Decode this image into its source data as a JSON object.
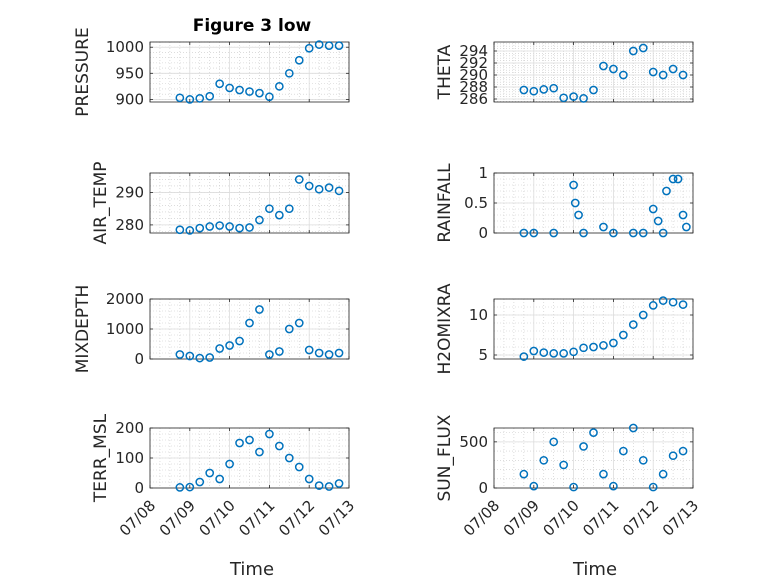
{
  "title": "Figure 3 low",
  "xlabel": "Time",
  "x_tick_labels": [
    "07/08",
    "07/09",
    "07/10",
    "07/11",
    "07/12",
    "07/13"
  ],
  "marker_color": "#0072BD",
  "chart_data": [
    {
      "type": "scatter",
      "name": "PRESSURE",
      "ylabel": "PRESSURE",
      "ylim": [
        895,
        1010
      ],
      "yticks": [
        900,
        950,
        1000
      ],
      "grid": true,
      "title": "Figure 3 low",
      "x": [
        "07/08 18:00",
        "07/09 00:00",
        "07/09 06:00",
        "07/09 12:00",
        "07/09 18:00",
        "07/10 00:00",
        "07/10 06:00",
        "07/10 12:00",
        "07/10 18:00",
        "07/11 00:00",
        "07/11 06:00",
        "07/11 12:00",
        "07/11 18:00",
        "07/12 00:00",
        "07/12 06:00",
        "07/12 12:00",
        "07/12 18:00"
      ],
      "y": [
        903,
        900,
        902,
        906,
        930,
        922,
        918,
        915,
        912,
        905,
        925,
        950,
        975,
        998,
        1005,
        1003,
        1003
      ]
    },
    {
      "type": "scatter",
      "name": "THETA",
      "ylabel": "THETA",
      "ylim": [
        285.5,
        295.5
      ],
      "yticks": [
        286,
        288,
        290,
        292,
        294
      ],
      "grid": true,
      "x": [
        "07/08 18:00",
        "07/09 00:00",
        "07/09 06:00",
        "07/09 12:00",
        "07/09 18:00",
        "07/10 00:00",
        "07/10 06:00",
        "07/10 12:00",
        "07/10 18:00",
        "07/11 00:00",
        "07/11 06:00",
        "07/11 12:00",
        "07/11 18:00",
        "07/12 00:00",
        "07/12 06:00",
        "07/12 12:00",
        "07/12 18:00"
      ],
      "y": [
        287.5,
        287.3,
        287.6,
        287.8,
        286.2,
        286.4,
        286.1,
        287.5,
        291.5,
        291.0,
        290.0,
        294.0,
        294.5,
        290.5,
        290.0,
        291.0,
        290.0
      ]
    },
    {
      "type": "scatter",
      "name": "AIR_TEMP",
      "ylabel": "AIR_TEMP",
      "ylim": [
        277.5,
        296
      ],
      "yticks": [
        280,
        290
      ],
      "grid": true,
      "x": [
        "07/08 18:00",
        "07/09 00:00",
        "07/09 06:00",
        "07/09 12:00",
        "07/09 18:00",
        "07/10 00:00",
        "07/10 06:00",
        "07/10 12:00",
        "07/10 18:00",
        "07/11 00:00",
        "07/11 06:00",
        "07/11 12:00",
        "07/11 18:00",
        "07/12 00:00",
        "07/12 06:00",
        "07/12 12:00",
        "07/12 18:00"
      ],
      "y": [
        278.5,
        278.3,
        279.0,
        279.5,
        279.8,
        279.5,
        279.0,
        279.2,
        281.5,
        285.0,
        283.0,
        285.0,
        294.0,
        292.0,
        291.0,
        291.5,
        290.5
      ]
    },
    {
      "type": "scatter",
      "name": "RAINFALL",
      "ylabel": "RAINFALL",
      "ylim": [
        0,
        1
      ],
      "yticks": [
        0,
        0.5,
        1
      ],
      "grid": true,
      "x": [
        "07/08 18:00",
        "07/09 00:00",
        "07/09 12:00",
        "07/10 00:00",
        "07/10 01:00",
        "07/10 03:00",
        "07/10 06:00",
        "07/10 18:00",
        "07/11 00:00",
        "07/11 12:00",
        "07/11 18:00",
        "07/12 00:00",
        "07/12 03:00",
        "07/12 06:00",
        "07/12 08:00",
        "07/12 12:00",
        "07/12 15:00",
        "07/12 18:00",
        "07/12 20:00"
      ],
      "y": [
        0,
        0,
        0,
        0.8,
        0.5,
        0.3,
        0,
        0.1,
        0,
        0,
        0,
        0.4,
        0.2,
        0,
        0.7,
        0.9,
        0.9,
        0.3,
        0.1
      ]
    },
    {
      "type": "scatter",
      "name": "MIXDEPTH",
      "ylabel": "MIXDEPTH",
      "ylim": [
        0,
        2000
      ],
      "yticks": [
        0,
        1000,
        2000
      ],
      "grid": true,
      "x": [
        "07/08 18:00",
        "07/09 00:00",
        "07/09 06:00",
        "07/09 12:00",
        "07/09 18:00",
        "07/10 00:00",
        "07/10 06:00",
        "07/10 12:00",
        "07/10 18:00",
        "07/11 00:00",
        "07/11 06:00",
        "07/11 12:00",
        "07/11 18:00",
        "07/12 00:00",
        "07/12 06:00",
        "07/12 12:00",
        "07/12 18:00"
      ],
      "y": [
        150,
        100,
        30,
        50,
        350,
        450,
        600,
        1200,
        1650,
        150,
        250,
        1000,
        1200,
        300,
        200,
        150,
        200
      ]
    },
    {
      "type": "scatter",
      "name": "H2OMIXRA",
      "ylabel": "H2OMIXRA",
      "ylim": [
        4.5,
        12
      ],
      "yticks": [
        5,
        10
      ],
      "grid": true,
      "x": [
        "07/08 18:00",
        "07/09 00:00",
        "07/09 06:00",
        "07/09 12:00",
        "07/09 18:00",
        "07/10 00:00",
        "07/10 06:00",
        "07/10 12:00",
        "07/10 18:00",
        "07/11 00:00",
        "07/11 06:00",
        "07/11 12:00",
        "07/11 18:00",
        "07/12 00:00",
        "07/12 06:00",
        "07/12 12:00",
        "07/12 18:00"
      ],
      "y": [
        4.8,
        5.5,
        5.3,
        5.2,
        5.2,
        5.4,
        5.9,
        6.0,
        6.2,
        6.5,
        7.5,
        8.8,
        10.0,
        11.2,
        11.8,
        11.6,
        11.3
      ]
    },
    {
      "type": "scatter",
      "name": "TERR_MSL",
      "ylabel": "TERR_MSL",
      "ylim": [
        0,
        200
      ],
      "yticks": [
        0,
        100,
        200
      ],
      "grid": true,
      "x": [
        "07/08 18:00",
        "07/09 00:00",
        "07/09 06:00",
        "07/09 12:00",
        "07/09 18:00",
        "07/10 00:00",
        "07/10 06:00",
        "07/10 12:00",
        "07/10 18:00",
        "07/11 00:00",
        "07/11 06:00",
        "07/11 12:00",
        "07/11 18:00",
        "07/12 00:00",
        "07/12 06:00",
        "07/12 12:00",
        "07/12 18:00"
      ],
      "y": [
        2,
        3,
        20,
        50,
        30,
        80,
        150,
        160,
        120,
        180,
        140,
        100,
        70,
        30,
        8,
        5,
        15
      ]
    },
    {
      "type": "scatter",
      "name": "SUN_FLUX",
      "ylabel": "SUN_FLUX",
      "ylim": [
        0,
        650
      ],
      "yticks": [
        0,
        500
      ],
      "grid": true,
      "x": [
        "07/08 18:00",
        "07/09 00:00",
        "07/09 06:00",
        "07/09 12:00",
        "07/09 18:00",
        "07/10 00:00",
        "07/10 06:00",
        "07/10 12:00",
        "07/10 18:00",
        "07/11 00:00",
        "07/11 06:00",
        "07/11 12:00",
        "07/11 18:00",
        "07/12 00:00",
        "07/12 06:00",
        "07/12 12:00",
        "07/12 18:00"
      ],
      "y": [
        150,
        20,
        300,
        500,
        250,
        10,
        450,
        600,
        150,
        20,
        400,
        650,
        300,
        10,
        150,
        350,
        400
      ]
    }
  ]
}
